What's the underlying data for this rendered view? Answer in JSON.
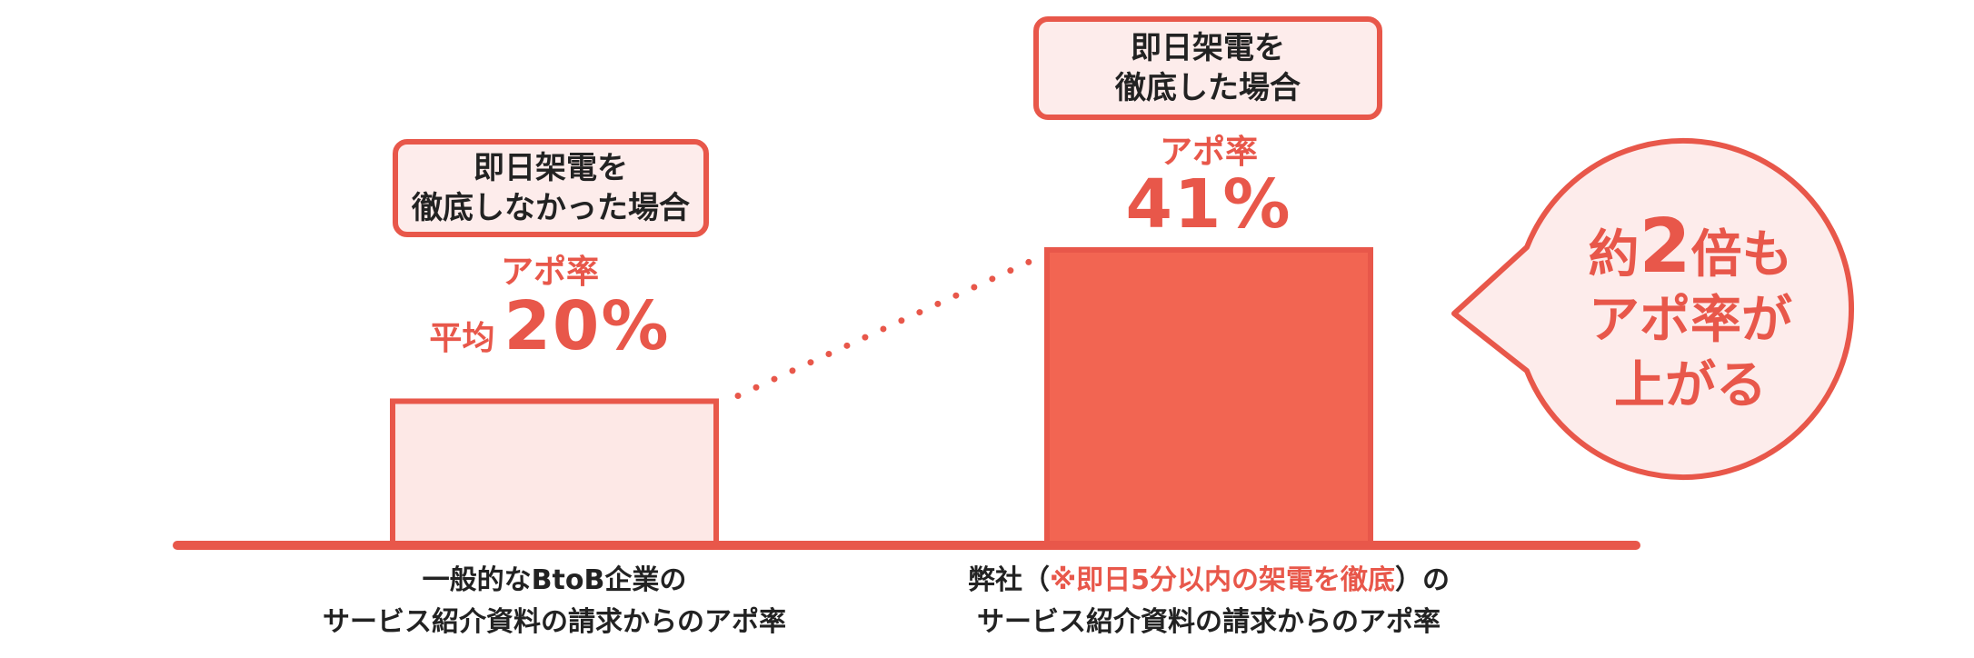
{
  "chart_data": {
    "type": "bar",
    "categories": [
      "一般的なBtoB企業のサービス紹介資料の請求からのアポ率",
      "弊社（※即日5分以内の架電を徹底）のサービス紹介資料の請求からのアポ率"
    ],
    "values": [
      20,
      41
    ],
    "ylim": [
      0,
      41
    ],
    "grid": false,
    "colors": {
      "bar_low_fill": "#fde8e6",
      "bar_high_fill": "#f26552",
      "accent": "#e8574a"
    },
    "bars": [
      {
        "callout_line1": "即日架電を",
        "callout_line2": "徹底しなかった場合",
        "metric_label": "アポ率",
        "prefix": "平均",
        "value_label": "20%",
        "axis_label_line1": "一般的なBtoB企業の",
        "axis_label_line2": "サービス紹介資料の請求からのアポ率"
      },
      {
        "callout_line1": "即日架電を",
        "callout_line2": "徹底した場合",
        "metric_label": "アポ率",
        "value_label": "41%",
        "axis_label_line1_before": "弊社（",
        "axis_label_line1_highlight": "※即日5分以内の架電を徹底",
        "axis_label_line1_after": "）の",
        "axis_label_line2": "サービス紹介資料の請求からのアポ率"
      }
    ],
    "annotation": {
      "prefix": "約",
      "number": "2",
      "suffix": "倍も",
      "line2": "アポ率が",
      "line3": "上がる"
    }
  }
}
